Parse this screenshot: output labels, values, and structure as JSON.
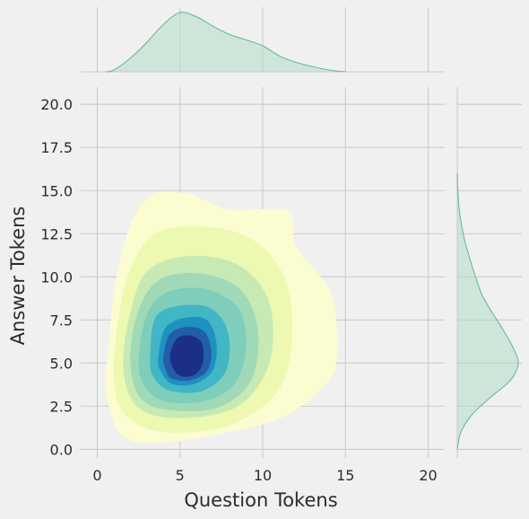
{
  "chart_data": {
    "type": "kde-jointplot",
    "xlabel": "Question Tokens",
    "ylabel": "Answer Tokens",
    "xlim": [
      -1,
      21
    ],
    "ylim": [
      -0.5,
      21
    ],
    "x_ticks": [
      0,
      5,
      10,
      15,
      20
    ],
    "y_ticks": [
      0.0,
      2.5,
      5.0,
      7.5,
      10.0,
      12.5,
      15.0,
      17.5,
      20.0
    ],
    "x_tick_labels": [
      "0",
      "5",
      "10",
      "15",
      "20"
    ],
    "y_tick_labels": [
      "0.0",
      "2.5",
      "5.0",
      "7.5",
      "10.0",
      "12.5",
      "15.0",
      "17.5",
      "20.0"
    ],
    "grid": true,
    "kde_peak": {
      "x": 5.3,
      "y": 5.4
    },
    "contour_levels": [
      {
        "color": "#fbfdd0",
        "points": [
          [
            0.5,
            3.5
          ],
          [
            0.7,
            6
          ],
          [
            1,
            9
          ],
          [
            1.8,
            12.5
          ],
          [
            3.2,
            14.7
          ],
          [
            5.5,
            14.8
          ],
          [
            8,
            13.9
          ],
          [
            11.5,
            13.8
          ],
          [
            12,
            11.8
          ],
          [
            14,
            9.3
          ],
          [
            14.5,
            7
          ],
          [
            14.5,
            5.5
          ],
          [
            14,
            4
          ],
          [
            11.5,
            2
          ],
          [
            8,
            1
          ],
          [
            4,
            0.4
          ],
          [
            1.5,
            0.8
          ]
        ]
      },
      {
        "color": "#edf8b1",
        "points": [
          [
            1,
            4
          ],
          [
            1.2,
            7
          ],
          [
            1.9,
            10.2
          ],
          [
            3.5,
            12.5
          ],
          [
            6.5,
            12.9
          ],
          [
            9.3,
            12.2
          ],
          [
            11.2,
            10.2
          ],
          [
            11.8,
            7
          ],
          [
            11,
            3.5
          ],
          [
            8,
            1.4
          ],
          [
            4,
            1
          ],
          [
            1.7,
            2
          ]
        ]
      },
      {
        "color": "#c7e9b4",
        "points": [
          [
            1.6,
            4.5
          ],
          [
            1.9,
            7.5
          ],
          [
            3,
            10.3
          ],
          [
            5.5,
            11.2
          ],
          [
            8.5,
            10.7
          ],
          [
            10.4,
            8.5
          ],
          [
            10.4,
            5
          ],
          [
            8.5,
            2.5
          ],
          [
            5,
            1.8
          ],
          [
            2.5,
            2.4
          ]
        ]
      },
      {
        "color": "#a0d9b8",
        "points": [
          [
            2,
            5
          ],
          [
            2.4,
            7.8
          ],
          [
            3.7,
            9.8
          ],
          [
            6.2,
            10.2
          ],
          [
            8.6,
            9.3
          ],
          [
            9.7,
            7
          ],
          [
            9.3,
            4
          ],
          [
            7.2,
            2.4
          ],
          [
            4.2,
            2.3
          ],
          [
            2.6,
            3
          ]
        ]
      },
      {
        "color": "#7fcdbb",
        "points": [
          [
            2.5,
            5.2
          ],
          [
            3,
            7.8
          ],
          [
            4.2,
            9.1
          ],
          [
            6.5,
            9.3
          ],
          [
            8.5,
            8.2
          ],
          [
            9,
            6
          ],
          [
            8.3,
            3.8
          ],
          [
            6.5,
            2.8
          ],
          [
            4,
            2.8
          ],
          [
            2.8,
            3.8
          ]
        ]
      },
      {
        "color": "#41b6c4",
        "points": [
          [
            3.2,
            5.3
          ],
          [
            3.5,
            7.6
          ],
          [
            4.8,
            8.3
          ],
          [
            6.8,
            8.2
          ],
          [
            7.9,
            6.8
          ],
          [
            7.8,
            4.6
          ],
          [
            6.4,
            3.4
          ],
          [
            4.4,
            3.4
          ],
          [
            3.4,
            4.2
          ]
        ]
      },
      {
        "color": "#1d91c0",
        "points": [
          [
            3.7,
            5.4
          ],
          [
            4.1,
            7
          ],
          [
            5.2,
            7.6
          ],
          [
            6.6,
            7.5
          ],
          [
            7.2,
            6.2
          ],
          [
            7,
            4.6
          ],
          [
            5.9,
            3.8
          ],
          [
            4.5,
            3.8
          ],
          [
            3.8,
            4.6
          ]
        ]
      },
      {
        "color": "#225ea8",
        "points": [
          [
            4,
            5.4
          ],
          [
            4.4,
            6.7
          ],
          [
            5.5,
            7.1
          ],
          [
            6.5,
            6.8
          ],
          [
            6.9,
            5.6
          ],
          [
            6.6,
            4.5
          ],
          [
            5.6,
            4
          ],
          [
            4.5,
            4.1
          ],
          [
            4.1,
            4.7
          ]
        ]
      },
      {
        "color": "#1b2f86",
        "points": [
          [
            4.4,
            5.4
          ],
          [
            4.8,
            6.4
          ],
          [
            5.6,
            6.6
          ],
          [
            6.3,
            6.2
          ],
          [
            6.4,
            5.1
          ],
          [
            6,
            4.4
          ],
          [
            5.3,
            4.2
          ],
          [
            4.7,
            4.5
          ]
        ]
      }
    ],
    "marginal_x": {
      "series": "Question Tokens density",
      "x": [
        0.5,
        1,
        2,
        3,
        4,
        5,
        6,
        7,
        8,
        9,
        10,
        11,
        12,
        13,
        14,
        15
      ],
      "density": [
        0.0,
        0.03,
        0.23,
        0.5,
        0.8,
        1.0,
        0.93,
        0.77,
        0.63,
        0.54,
        0.44,
        0.27,
        0.16,
        0.09,
        0.03,
        0.0
      ]
    },
    "marginal_y": {
      "series": "Answer Tokens density",
      "y": [
        0.0,
        1,
        2,
        3,
        4,
        5,
        6,
        7,
        8,
        9,
        10,
        11,
        12,
        13,
        14,
        15,
        16
      ],
      "density": [
        0.0,
        0.06,
        0.24,
        0.54,
        0.87,
        1.0,
        0.9,
        0.74,
        0.56,
        0.4,
        0.3,
        0.21,
        0.13,
        0.07,
        0.03,
        0.01,
        0.0
      ]
    },
    "fill_color": "#b3dcc9",
    "line_color": "#5fb88f"
  }
}
